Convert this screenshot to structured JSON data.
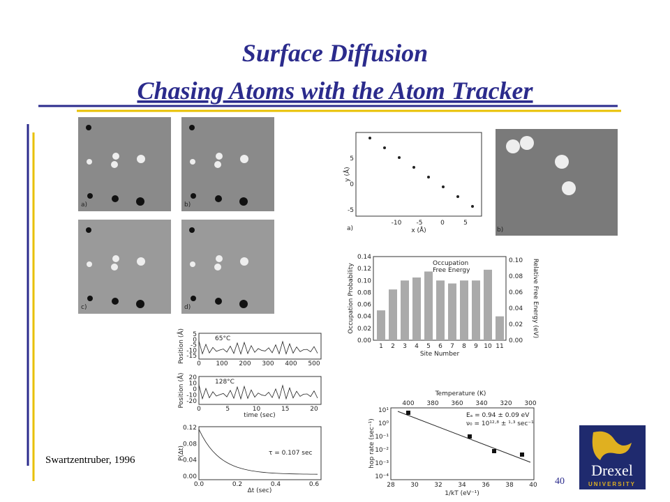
{
  "header": {
    "title": "Surface Diffusion",
    "subtitle": "Chasing Atoms with the Atom Tracker"
  },
  "stm_images": {
    "labels": [
      "a)",
      "b)",
      "c)",
      "d)"
    ]
  },
  "trajectory": {
    "panel_a": "a)",
    "panel_b": "b)",
    "y_label": "y (Å)",
    "x_label": "x (Å)",
    "yticks": [
      "5",
      "0",
      "-5"
    ],
    "xticks": [
      "-10",
      "-5",
      "0",
      "5"
    ]
  },
  "occupation": {
    "y_label": "Occupation Probability",
    "y2_label": "Relative Free Energy (eV)",
    "x_label": "Site Number",
    "legend": [
      "Occupation",
      "Free Energy"
    ],
    "yticks": [
      "0.14",
      "0.12",
      "0.10",
      "0.08",
      "0.06",
      "0.04",
      "0.02",
      "0.00"
    ],
    "y2ticks": [
      "0.10",
      "0.08",
      "0.06",
      "0.04",
      "0.02",
      "0.00"
    ],
    "xticks": [
      "1",
      "2",
      "3",
      "4",
      "5",
      "6",
      "7",
      "8",
      "9",
      "10",
      "11"
    ]
  },
  "position": {
    "top": {
      "y_label": "Position (Å)",
      "annotation": "65°C",
      "yticks": [
        "5",
        "0",
        "-5",
        "-10",
        "-15"
      ],
      "xticks": [
        "0",
        "100",
        "200",
        "300",
        "400",
        "500"
      ]
    },
    "middle": {
      "y_label": "Position (Å)",
      "annotation": "128°C",
      "x_label": "time (sec)",
      "yticks": [
        "20",
        "10",
        "0",
        "-10",
        "-20"
      ],
      "xticks": [
        "0",
        "5",
        "10",
        "15",
        "20"
      ]
    },
    "bottom": {
      "y_label": "P(Δt)",
      "annotation": "τ = 0.107 sec",
      "x_label": "Δt (sec)",
      "yticks": [
        "0.12",
        "0.08",
        "0.04",
        "0.00"
      ],
      "xticks": [
        "0.0",
        "0.2",
        "0.4",
        "0.6"
      ]
    }
  },
  "arrhenius": {
    "top_label": "Temperature (K)",
    "topticks": [
      "400",
      "380",
      "360",
      "340",
      "320",
      "300"
    ],
    "y_label": "hop rate (sec⁻¹)",
    "x_label": "1/kT (eV⁻¹)",
    "annotation_1": "Eₐ = 0.94 ± 0.09 eV",
    "annotation_2": "ν₀ = 10¹²·⁸ ± ¹·³ sec⁻¹",
    "yticks": [
      "10¹",
      "10⁰",
      "10⁻¹",
      "10⁻²",
      "10⁻³",
      "10⁻⁴"
    ],
    "xticks": [
      "28",
      "30",
      "32",
      "34",
      "36",
      "38",
      "40"
    ]
  },
  "citation": "Swartzentruber, 1996",
  "page_number": "40",
  "logo": {
    "name": "Drexel",
    "subtitle": "UNIVERSITY"
  }
}
